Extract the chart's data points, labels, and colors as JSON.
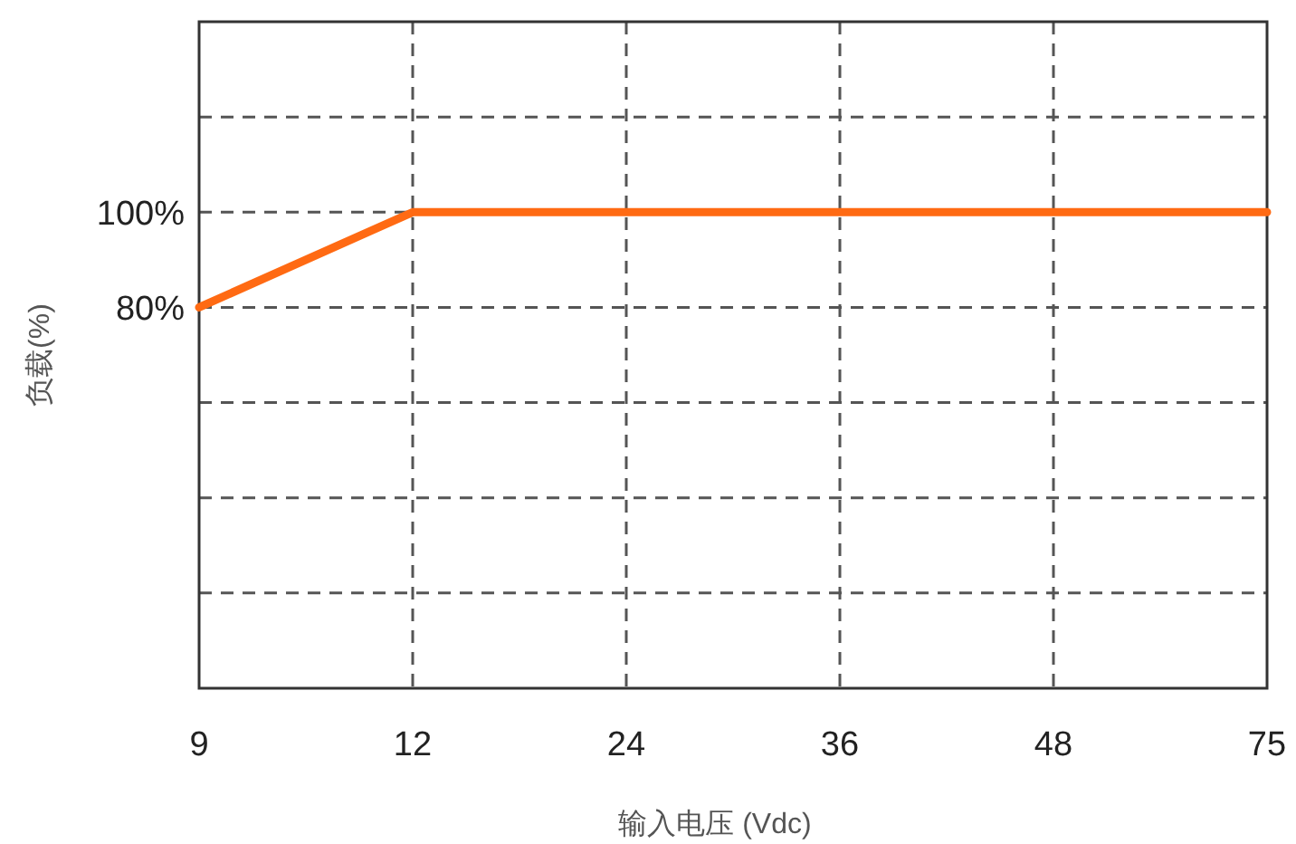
{
  "chart_data": {
    "type": "line",
    "xlabel": "输入电压 (Vdc)",
    "ylabel": "负载(%)",
    "categories": [
      "9",
      "12",
      "24",
      "36",
      "48",
      "75"
    ],
    "series": [
      {
        "color": "#ff6a13",
        "values": [
          80,
          100,
          100,
          100,
          100,
          100
        ]
      }
    ],
    "ylim": [
      0,
      140
    ],
    "yticks": [
      {
        "value": 0,
        "label": null
      },
      {
        "value": 20,
        "label": null
      },
      {
        "value": 40,
        "label": null
      },
      {
        "value": 60,
        "label": null
      },
      {
        "value": 80,
        "label": "80%"
      },
      {
        "value": 100,
        "label": "100%"
      },
      {
        "value": 120,
        "label": null
      },
      {
        "value": 140,
        "label": null
      }
    ],
    "grid": true,
    "marker": "none",
    "line_style": "solid"
  }
}
